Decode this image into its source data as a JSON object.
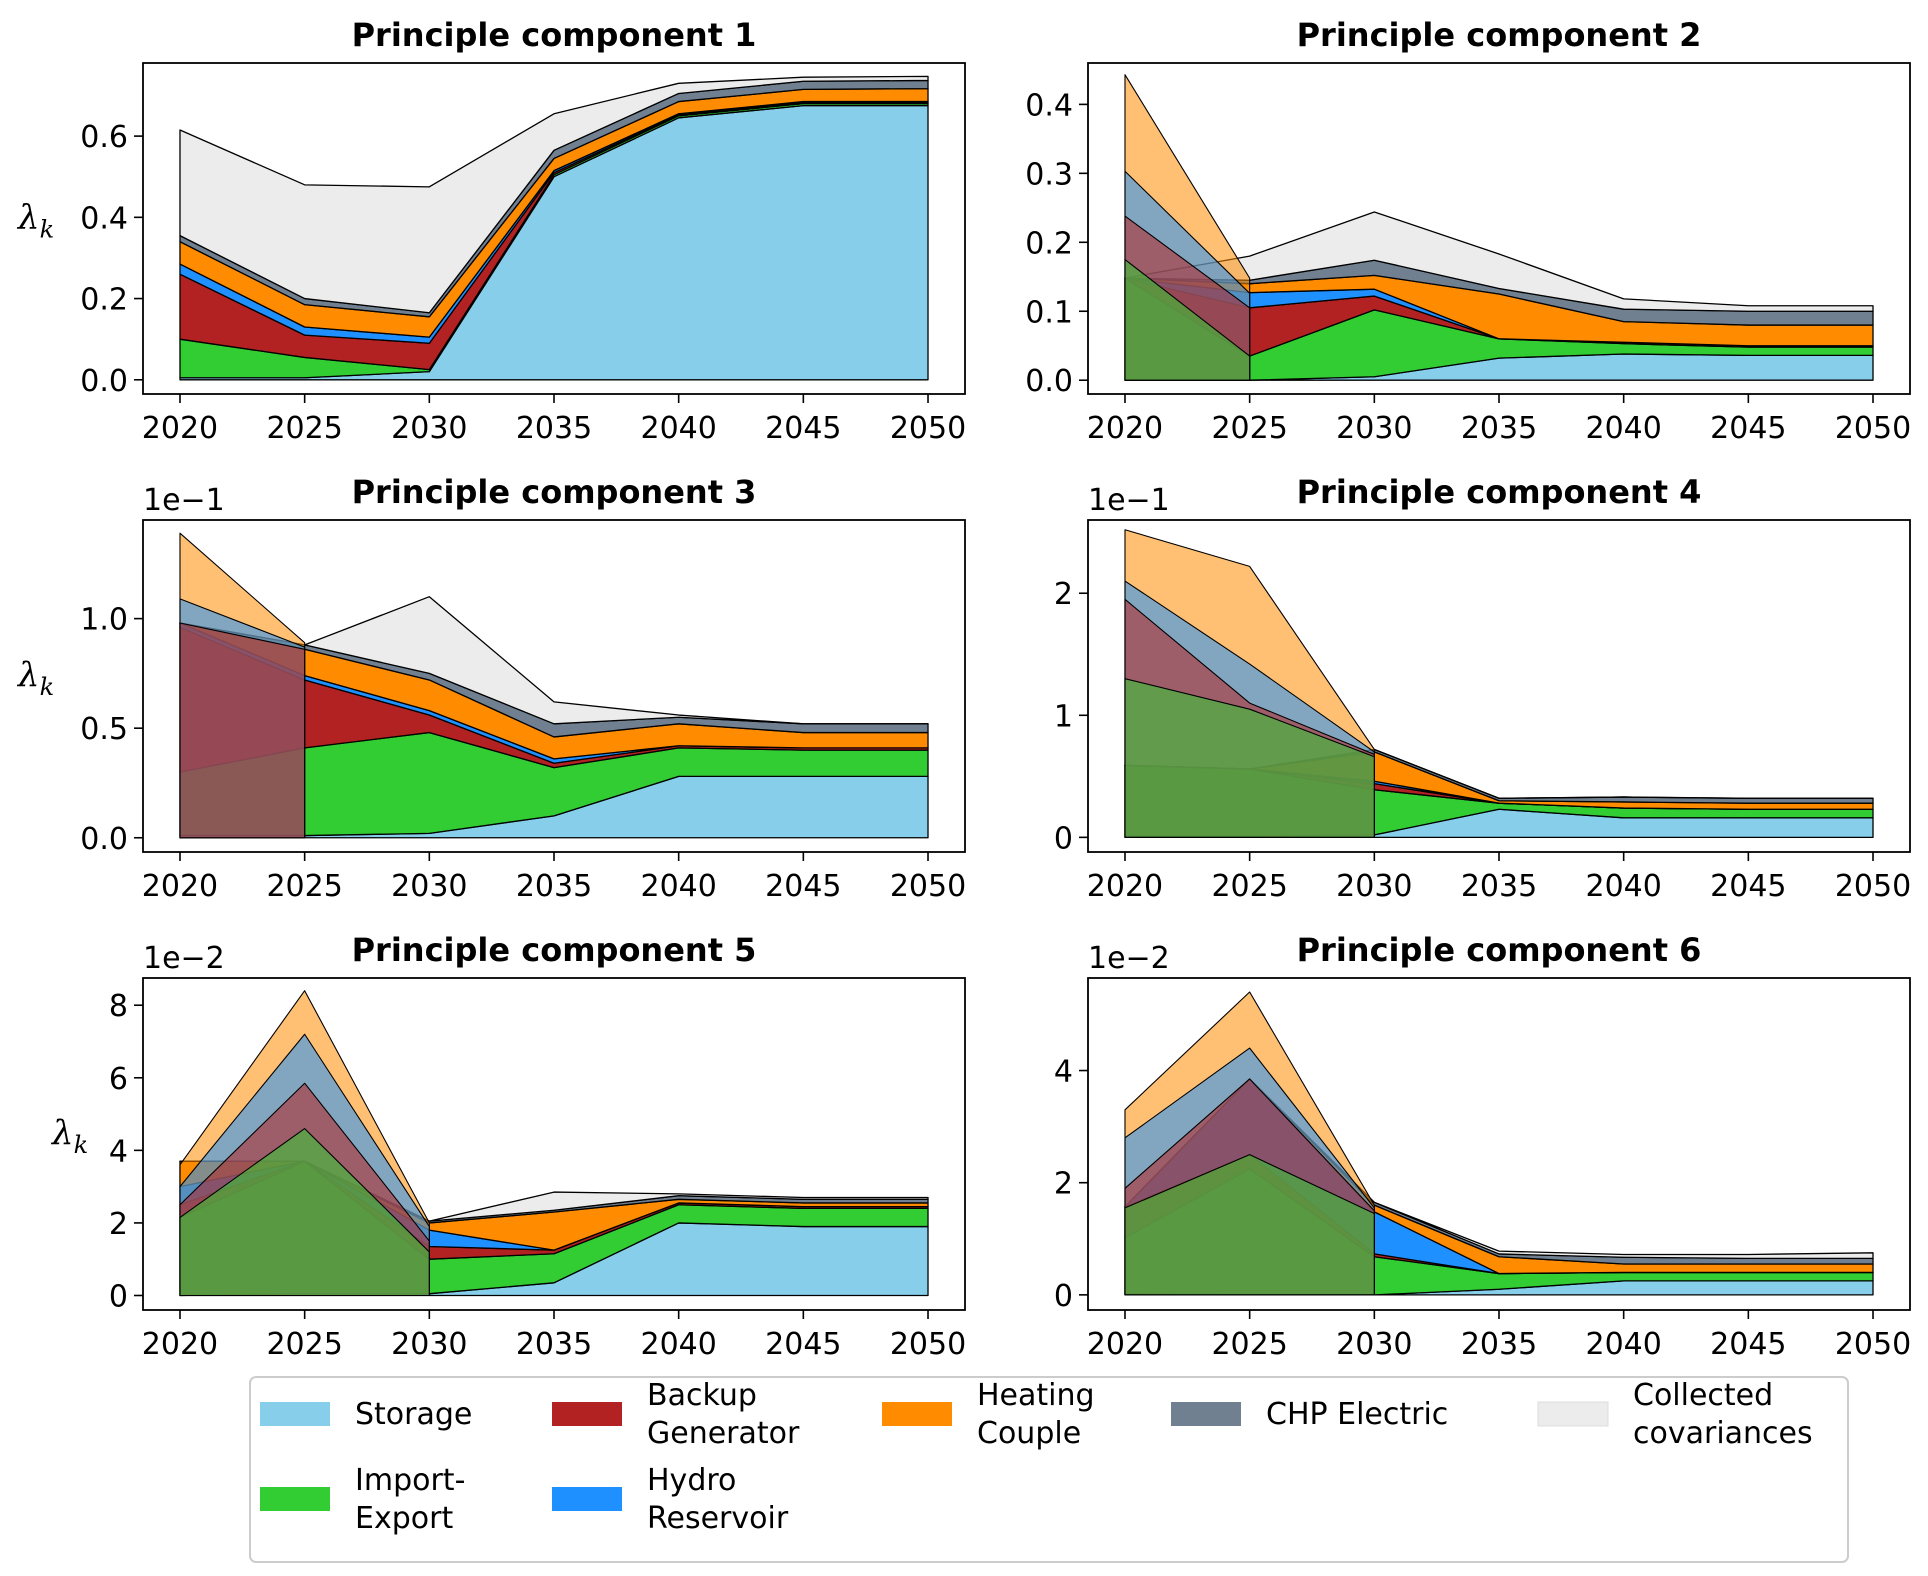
{
  "legend": [
    {
      "key": "storage",
      "label_lines": [
        "Storage"
      ],
      "color": "#87ceeb"
    },
    {
      "key": "import_export",
      "label_lines": [
        "Import-",
        "Export"
      ],
      "color": "#32cd32"
    },
    {
      "key": "backup_generator",
      "label_lines": [
        "Backup",
        "Generator"
      ],
      "color": "#b22222"
    },
    {
      "key": "hydro_reservoir",
      "label_lines": [
        "Hydro",
        "Reservoir"
      ],
      "color": "#1e90ff"
    },
    {
      "key": "heating_couple",
      "label_lines": [
        "Heating",
        "Couple"
      ],
      "color": "#ff8c00"
    },
    {
      "key": "chp_electric",
      "label_lines": [
        "CHP Electric"
      ],
      "color": "#708090"
    },
    {
      "key": "collected",
      "label_lines": [
        "Collected",
        "covariances"
      ],
      "color": "#ececec"
    }
  ],
  "chart_data": [
    {
      "type": "area",
      "title": "Principle component 1",
      "ylabel": "λk",
      "exponent": "",
      "x": [
        2020,
        2025,
        2030,
        2035,
        2040,
        2045,
        2050
      ],
      "ylim": [
        -0.035,
        0.78
      ],
      "yticks": [
        0.0,
        0.2,
        0.4,
        0.6
      ],
      "ytick_labels": [
        "0.0",
        "0.2",
        "0.4",
        "0.6"
      ],
      "series": [
        {
          "name": "Storage",
          "values": [
            0.005,
            0.005,
            0.02,
            0.5,
            0.645,
            0.675,
            0.675
          ]
        },
        {
          "name": "Import-Export",
          "values": [
            0.095,
            0.05,
            0.005,
            0.005,
            0.005,
            0.005,
            0.005
          ]
        },
        {
          "name": "Backup Generator",
          "values": [
            0.16,
            0.055,
            0.065,
            0.005,
            0.002,
            0.002,
            0.002
          ]
        },
        {
          "name": "Hydro Reservoir",
          "values": [
            0.025,
            0.02,
            0.015,
            0.005,
            0.003,
            0.003,
            0.003
          ]
        },
        {
          "name": "Heating Couple",
          "values": [
            0.055,
            0.055,
            0.05,
            0.03,
            0.03,
            0.03,
            0.032
          ]
        },
        {
          "name": "CHP Electric",
          "values": [
            0.015,
            0.015,
            0.01,
            0.02,
            0.02,
            0.02,
            0.02
          ]
        },
        {
          "name": "Collected covariances",
          "values": [
            0.26,
            0.28,
            0.31,
            0.09,
            0.025,
            0.01,
            0.01
          ]
        }
      ],
      "overlays": []
    },
    {
      "type": "area",
      "title": "Principle component 2",
      "ylabel": "",
      "exponent": "",
      "x": [
        2020,
        2025,
        2030,
        2035,
        2040,
        2045,
        2050
      ],
      "ylim": [
        -0.02,
        0.46
      ],
      "yticks": [
        0.0,
        0.1,
        0.2,
        0.3,
        0.4
      ],
      "ytick_labels": [
        "0.0",
        "0.1",
        "0.2",
        "0.3",
        "0.4"
      ],
      "series": [
        {
          "name": "Storage",
          "values": [
            0.0,
            0.0,
            0.005,
            0.032,
            0.038,
            0.036,
            0.036
          ]
        },
        {
          "name": "Import-Export",
          "values": [
            0.148,
            0.035,
            0.097,
            0.028,
            0.015,
            0.012,
            0.012
          ]
        },
        {
          "name": "Backup Generator",
          "values": [
            0.0,
            0.07,
            0.02,
            0.0,
            0.002,
            0.002,
            0.002
          ]
        },
        {
          "name": "Hydro Reservoir",
          "values": [
            0.0,
            0.022,
            0.01,
            0.0,
            0.0,
            0.0,
            0.0
          ]
        },
        {
          "name": "Heating Couple",
          "values": [
            0.0,
            0.013,
            0.02,
            0.065,
            0.03,
            0.03,
            0.03
          ]
        },
        {
          "name": "CHP Electric",
          "values": [
            0.0,
            0.005,
            0.022,
            0.008,
            0.018,
            0.02,
            0.02
          ]
        },
        {
          "name": "Collected covariances",
          "values": [
            0.0,
            0.035,
            0.07,
            0.05,
            0.015,
            0.008,
            0.008
          ]
        }
      ],
      "overlays": [
        {
          "series": "Heating Couple",
          "values": [
            0.443,
            0.148
          ]
        },
        {
          "series": "Hydro Reservoir",
          "values": [
            0.303,
            0.126
          ]
        },
        {
          "series": "Backup Generator",
          "values": [
            0.238,
            0.105
          ]
        },
        {
          "series": "Import-Export",
          "values": [
            0.175,
            0.035
          ]
        }
      ]
    },
    {
      "type": "area",
      "title": "Principle component 3",
      "ylabel": "λk",
      "exponent": "1e−1",
      "x": [
        2020,
        2025,
        2030,
        2035,
        2040,
        2045,
        2050
      ],
      "ylim": [
        -0.065,
        1.45
      ],
      "yticks": [
        0.0,
        0.5,
        1.0
      ],
      "ytick_labels": [
        "0.0",
        "0.5",
        "1.0"
      ],
      "series": [
        {
          "name": "Storage",
          "values": [
            0.01,
            0.01,
            0.02,
            0.1,
            0.28,
            0.28,
            0.28
          ]
        },
        {
          "name": "Import-Export",
          "values": [
            0.29,
            0.4,
            0.46,
            0.22,
            0.13,
            0.12,
            0.12
          ]
        },
        {
          "name": "Backup Generator",
          "values": [
            0.66,
            0.31,
            0.08,
            0.02,
            0.01,
            0.01,
            0.01
          ]
        },
        {
          "name": "Hydro Reservoir",
          "values": [
            0.02,
            0.02,
            0.02,
            0.02,
            0.0,
            0.0,
            0.0
          ]
        },
        {
          "name": "Heating Couple",
          "values": [
            0.0,
            0.12,
            0.14,
            0.1,
            0.1,
            0.07,
            0.07
          ]
        },
        {
          "name": "CHP Electric",
          "values": [
            0.0,
            0.02,
            0.03,
            0.06,
            0.03,
            0.04,
            0.04
          ]
        },
        {
          "name": "Collected covariances",
          "values": [
            0.0,
            0.0,
            0.35,
            0.1,
            0.01,
            0.0,
            0.0
          ]
        }
      ],
      "overlays": [
        {
          "series": "Heating Couple",
          "values": [
            1.39,
            0.89
          ]
        },
        {
          "series": "Hydro Reservoir",
          "values": [
            1.09,
            0.87
          ]
        },
        {
          "series": "Backup Generator",
          "values": [
            0.98,
            0.86
          ]
        }
      ]
    },
    {
      "type": "area",
      "title": "Principle component 4",
      "ylabel": "",
      "exponent": "1e−1",
      "x": [
        2020,
        2025,
        2030,
        2035,
        2040,
        2045,
        2050
      ],
      "ylim": [
        -0.12,
        2.6
      ],
      "yticks": [
        0,
        1,
        2
      ],
      "ytick_labels": [
        "0",
        "1",
        "2"
      ],
      "series": [
        {
          "name": "Storage",
          "values": [
            0.01,
            0.01,
            0.02,
            0.23,
            0.16,
            0.16,
            0.16
          ]
        },
        {
          "name": "Import-Export",
          "values": [
            0.58,
            0.55,
            0.37,
            0.05,
            0.08,
            0.07,
            0.07
          ]
        },
        {
          "name": "Backup Generator",
          "values": [
            0.0,
            0.0,
            0.05,
            0.0,
            0.0,
            0.0,
            0.0
          ]
        },
        {
          "name": "Hydro Reservoir",
          "values": [
            0.0,
            0.0,
            0.02,
            0.0,
            0.0,
            0.0,
            0.0
          ]
        },
        {
          "name": "Heating Couple",
          "values": [
            0.0,
            0.0,
            0.24,
            0.02,
            0.05,
            0.05,
            0.05
          ]
        },
        {
          "name": "CHP Electric",
          "values": [
            0.0,
            0.0,
            0.02,
            0.02,
            0.04,
            0.04,
            0.04
          ]
        },
        {
          "name": "Collected covariances",
          "values": [
            0.0,
            0.0,
            0.0,
            0.0,
            0.0,
            0.0,
            0.0
          ]
        }
      ],
      "overlays": [
        {
          "series": "Heating Couple",
          "values": [
            2.52,
            2.22,
            0.72
          ]
        },
        {
          "series": "Hydro Reservoir",
          "values": [
            2.1,
            1.42,
            0.7
          ]
        },
        {
          "series": "Backup Generator",
          "values": [
            1.95,
            1.1,
            0.68
          ]
        },
        {
          "series": "Import-Export",
          "values": [
            1.3,
            1.05,
            0.66
          ]
        }
      ]
    },
    {
      "type": "area",
      "title": "Principle component 5",
      "ylabel": "λk",
      "exponent": "1e−2",
      "x": [
        2020,
        2025,
        2030,
        2035,
        2040,
        2045,
        2050
      ],
      "ylim": [
        -0.4,
        8.75
      ],
      "yticks": [
        0,
        2,
        4,
        6,
        8
      ],
      "ytick_labels": [
        "0",
        "2",
        "4",
        "6",
        "8"
      ],
      "series": [
        {
          "name": "Storage",
          "values": [
            0.0,
            0.05,
            0.05,
            0.35,
            2.0,
            1.9,
            1.9
          ]
        },
        {
          "name": "Import-Export",
          "values": [
            2.15,
            3.65,
            0.95,
            0.8,
            0.5,
            0.5,
            0.5
          ]
        },
        {
          "name": "Backup Generator",
          "values": [
            0.35,
            0.0,
            0.35,
            0.1,
            0.05,
            0.05,
            0.05
          ]
        },
        {
          "name": "Hydro Reservoir",
          "values": [
            0.5,
            0.0,
            0.45,
            0.0,
            0.0,
            0.0,
            0.0
          ]
        },
        {
          "name": "Heating Couple",
          "values": [
            0.7,
            0.0,
            0.2,
            1.05,
            0.1,
            0.1,
            0.1
          ]
        },
        {
          "name": "CHP Electric",
          "values": [
            0.0,
            0.0,
            0.05,
            0.05,
            0.1,
            0.1,
            0.1
          ]
        },
        {
          "name": "Collected covariances",
          "values": [
            0.0,
            0.0,
            0.0,
            0.5,
            0.05,
            0.05,
            0.05
          ]
        }
      ],
      "overlays": [
        {
          "series": "Heating Couple",
          "values": [
            3.6,
            8.4,
            2.0
          ]
        },
        {
          "series": "Hydro Reservoir",
          "values": [
            3.0,
            7.2,
            1.9
          ]
        },
        {
          "series": "Backup Generator",
          "values": [
            2.5,
            5.85,
            1.5
          ]
        },
        {
          "series": "Import-Export",
          "values": [
            2.15,
            4.6,
            1.2
          ]
        }
      ]
    },
    {
      "type": "area",
      "title": "Principle component 6",
      "ylabel": "",
      "exponent": "1e−2",
      "x": [
        2020,
        2025,
        2030,
        2035,
        2040,
        2045,
        2050
      ],
      "ylim": [
        -0.27,
        5.65
      ],
      "yticks": [
        0,
        2,
        4
      ],
      "ytick_labels": [
        "0",
        "2",
        "4"
      ],
      "series": [
        {
          "name": "Storage",
          "values": [
            0.02,
            0.0,
            0.0,
            0.1,
            0.25,
            0.25,
            0.25
          ]
        },
        {
          "name": "Import-Export",
          "values": [
            1.0,
            2.25,
            0.68,
            0.28,
            0.15,
            0.15,
            0.15
          ]
        },
        {
          "name": "Backup Generator",
          "values": [
            0.55,
            0.25,
            0.05,
            0.0,
            0.0,
            0.0,
            0.0
          ]
        },
        {
          "name": "Hydro Reservoir",
          "values": [
            0.0,
            1.35,
            0.75,
            0.0,
            0.0,
            0.0,
            0.0
          ]
        },
        {
          "name": "Heating Couple",
          "values": [
            0.0,
            0.0,
            0.12,
            0.3,
            0.15,
            0.15,
            0.15
          ]
        },
        {
          "name": "CHP Electric",
          "values": [
            0.0,
            0.0,
            0.05,
            0.05,
            0.12,
            0.1,
            0.1
          ]
        },
        {
          "name": "Collected covariances",
          "values": [
            0.0,
            0.0,
            0.0,
            0.05,
            0.05,
            0.07,
            0.1
          ]
        }
      ],
      "overlays": [
        {
          "series": "Heating Couple",
          "values": [
            3.3,
            5.4,
            1.6
          ]
        },
        {
          "series": "Hydro Reservoir",
          "values": [
            2.8,
            4.4,
            1.55
          ]
        },
        {
          "series": "Backup Generator",
          "values": [
            1.9,
            3.85,
            1.5
          ]
        },
        {
          "series": "Import-Export",
          "values": [
            1.55,
            2.5,
            1.45
          ]
        }
      ]
    }
  ]
}
